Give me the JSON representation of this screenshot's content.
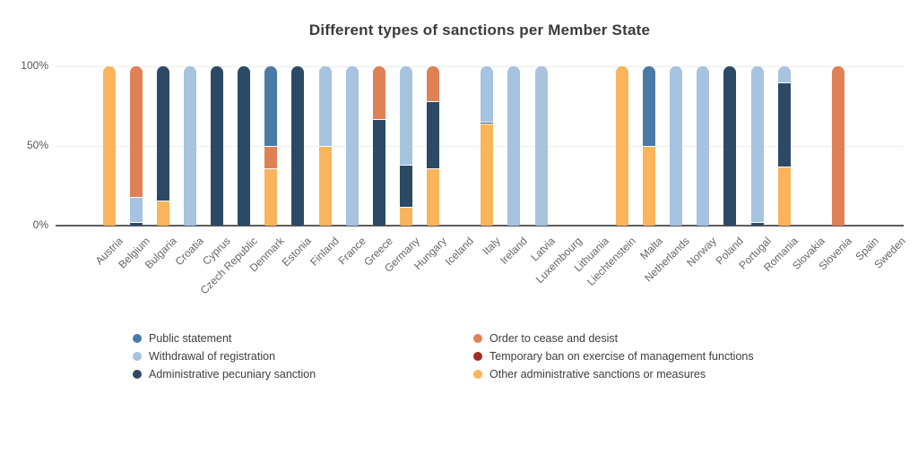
{
  "chart_data": {
    "type": "bar",
    "stacked": true,
    "title": "Different types of sanctions per Member State",
    "xlabel": "",
    "ylabel": "",
    "ylim": [
      0,
      100
    ],
    "grid": "horizontal",
    "legend_position": "bottom",
    "yticks": [
      {
        "label": "0%",
        "value": 0
      },
      {
        "label": "50%",
        "value": 50
      },
      {
        "label": "100%",
        "value": 100
      }
    ],
    "categories": [
      "Austria",
      "Belgium",
      "Bulgaria",
      "Croatia",
      "Cyprus",
      "Czech Republic",
      "Denmark",
      "Estonia",
      "Finland",
      "France",
      "Greece",
      "Germany",
      "Hungary",
      "Iceland",
      "Italy",
      "Ireland",
      "Latvia",
      "Luxembourg",
      "Lithuania",
      "Liechtenstein",
      "Malta",
      "Netherlands",
      "Norway",
      "Poland",
      "Portugal",
      "Romania",
      "Slovakia",
      "Slovenia",
      "Spain",
      "Sweden"
    ],
    "series": [
      {
        "name": "Public statement",
        "color": "#4A7BA7",
        "values": [
          0,
          0,
          0,
          0,
          0,
          0,
          50,
          0,
          0,
          0,
          0,
          0,
          0,
          0,
          0,
          0,
          0,
          0,
          0,
          0,
          50,
          0,
          0,
          0,
          0,
          0,
          0,
          0,
          0,
          0
        ]
      },
      {
        "name": "Withdrawal of registration",
        "color": "#A6C3DF",
        "values": [
          0,
          16,
          0,
          100,
          0,
          0,
          0,
          0,
          50,
          100,
          0,
          62,
          0,
          0,
          35,
          100,
          100,
          0,
          0,
          0,
          0,
          100,
          100,
          0,
          98,
          10,
          0,
          0,
          0,
          0
        ]
      },
      {
        "name": "Administrative pecuniary sanction",
        "color": "#2C4A66",
        "values": [
          0,
          2,
          84,
          0,
          100,
          100,
          0,
          100,
          0,
          0,
          67,
          26,
          42,
          0,
          1,
          0,
          0,
          0,
          0,
          0,
          0,
          0,
          0,
          100,
          2,
          53,
          0,
          0,
          0,
          0
        ]
      },
      {
        "name": "Order to cease and desist",
        "color": "#DF8155",
        "values": [
          0,
          82,
          0,
          0,
          0,
          0,
          14,
          0,
          0,
          0,
          33,
          0,
          22,
          0,
          0,
          0,
          0,
          0,
          0,
          0,
          0,
          0,
          0,
          0,
          0,
          0,
          0,
          100,
          0,
          0
        ]
      },
      {
        "name": "Temporary ban on exercise of management functions",
        "color": "#A52A23",
        "values": [
          0,
          0,
          0,
          0,
          0,
          0,
          0,
          0,
          0,
          0,
          0,
          0,
          0,
          0,
          0,
          0,
          0,
          0,
          0,
          0,
          0,
          0,
          0,
          0,
          0,
          0,
          0,
          0,
          0,
          0
        ]
      },
      {
        "name": "Other administrative sanctions or measures",
        "color": "#F9B45C",
        "values": [
          100,
          0,
          16,
          0,
          0,
          0,
          36,
          0,
          50,
          0,
          0,
          12,
          36,
          0,
          64,
          0,
          0,
          0,
          0,
          100,
          50,
          0,
          0,
          0,
          0,
          37,
          0,
          0,
          0,
          0
        ]
      }
    ],
    "stack_order_bottom_to_top": [
      5,
      2,
      1,
      3,
      0,
      4
    ],
    "legend_columns": [
      [
        0,
        1,
        2
      ],
      [
        3,
        4,
        5
      ]
    ]
  }
}
